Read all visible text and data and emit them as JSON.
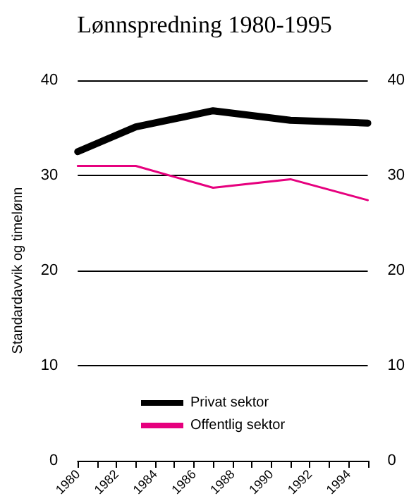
{
  "chart_data": {
    "type": "line",
    "title": "Lønnspredning 1980-1995",
    "ylabel": "Standardavvik og timelønn",
    "x": [
      1980,
      1983,
      1987,
      1991,
      1995
    ],
    "series": [
      {
        "name": "Privat sektor",
        "color": "#000000",
        "values": [
          32.5,
          35.1,
          36.8,
          35.8,
          35.5
        ]
      },
      {
        "name": "Offentlig sektor",
        "color": "#e6007e",
        "values": [
          31.0,
          31.0,
          28.7,
          29.6,
          27.4
        ]
      }
    ],
    "xlim": [
      1980,
      1995
    ],
    "xticks": [
      1980,
      {
        "value": 1981,
        "label": null
      },
      1982,
      {
        "value": 1983,
        "label": null
      },
      1984,
      {
        "value": 1985,
        "label": null
      },
      1986,
      {
        "value": 1987,
        "label": null
      },
      1988,
      {
        "value": 1989,
        "label": null
      },
      1990,
      {
        "value": 1991,
        "label": null
      },
      1992,
      {
        "value": 1993,
        "label": null
      },
      1994,
      {
        "value": 1995,
        "label": null
      }
    ],
    "ylim": [
      0,
      40
    ],
    "yticks": [
      0,
      10,
      20,
      30,
      40
    ],
    "y2lim": [
      0,
      40
    ],
    "y2ticks": [
      0,
      10,
      20,
      30,
      40
    ],
    "grid": "y",
    "legend": "bottom",
    "marker": "none",
    "line_style": "solid"
  }
}
